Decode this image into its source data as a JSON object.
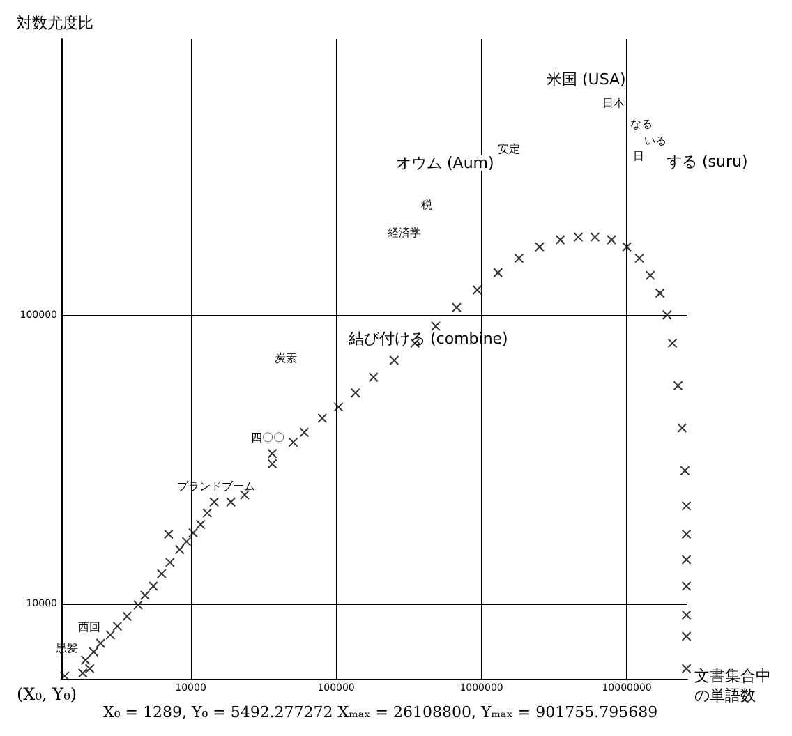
{
  "chart_data": {
    "type": "scatter",
    "xlabel": "文書集合中の単語数",
    "ylabel": "対数尤度比",
    "x": [
      1360,
      1810,
      2020,
      1890,
      2150,
      2400,
      2800,
      3130,
      3650,
      4350,
      4850,
      5530,
      6310,
      7200,
      8400,
      9360,
      10400,
      11700,
      13000,
      14500,
      7050,
      18900,
      23500,
      36400,
      36400,
      50700,
      60400,
      80400,
      104000,
      136000,
      181000,
      251000,
      349000,
      485000,
      675000,
      935000,
      1300000,
      1810000,
      2510000,
      3490000,
      4640000,
      6040000,
      7850000,
      10000000,
      12200000,
      14500000,
      16900000,
      18900000,
      20600000,
      22500000,
      24000000,
      25100000,
      25700000,
      25700000,
      25700000,
      25700000,
      25700000,
      25700000,
      25700000
    ],
    "values": [
      5620,
      5750,
      5960,
      6370,
      6810,
      7290,
      7800,
      8350,
      9040,
      9890,
      10700,
      11500,
      12700,
      13900,
      15400,
      16400,
      17600,
      18800,
      20600,
      22500,
      17400,
      22500,
      23800,
      30500,
      33100,
      36200,
      39200,
      43900,
      48000,
      53700,
      60800,
      69600,
      79800,
      91400,
      106000,
      122000,
      140000,
      157000,
      172000,
      182000,
      186000,
      186000,
      182000,
      172000,
      157000,
      137000,
      119000,
      100000,
      79800,
      56900,
      40600,
      28900,
      21800,
      17400,
      14200,
      11500,
      9140,
      7710,
      5960
    ],
    "color": "#000000",
    "marker": "cross",
    "log": "xy",
    "grid": true,
    "xlim": [
      1289,
      26108800
    ],
    "ylim": [
      5492.277272,
      901755.795689
    ],
    "xticks": [
      10000,
      100000,
      1000000,
      10000000
    ],
    "yticks": [
      10000,
      100000
    ],
    "annotations": [
      "米国 (USA)",
      "日本",
      "なる",
      "いる",
      "日",
      "する (suru)",
      "安定",
      "オウム (Aum)",
      "税",
      "経済学",
      "結び付ける (combine)",
      "炭素",
      "四〇〇",
      "ブランドブーム",
      "西回",
      "黒髪",
      "(X₀, Y₀)",
      "X₀ = 1289, Y₀ = 5492.277272 Xₘₐₓ = 26108800, Yₘₐₓ = 901755.795689"
    ]
  }
}
